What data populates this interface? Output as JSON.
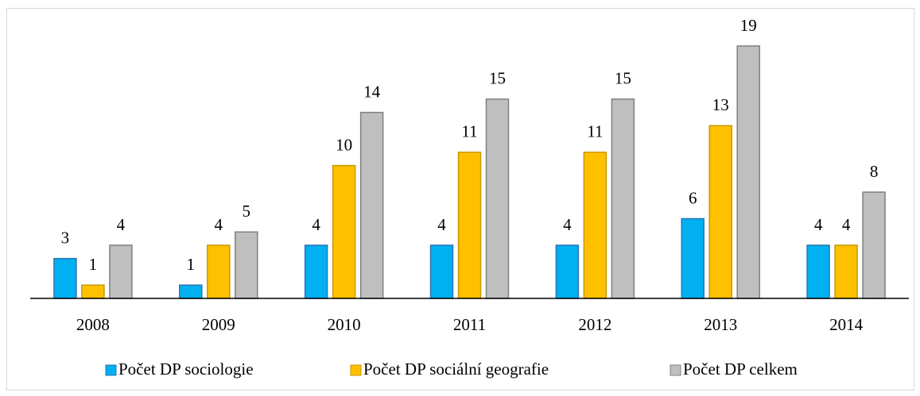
{
  "chart_data": {
    "type": "bar",
    "categories": [
      "2008",
      "2009",
      "2010",
      "2011",
      "2012",
      "2013",
      "2014"
    ],
    "series": [
      {
        "name": "Počet DP sociologie",
        "color": "#00b0f0",
        "values": [
          3,
          1,
          4,
          4,
          4,
          6,
          4
        ]
      },
      {
        "name": "Počet DP sociální geografie",
        "color": "#ffc000",
        "values": [
          1,
          4,
          10,
          11,
          11,
          13,
          4
        ]
      },
      {
        "name": "Počet DP celkem",
        "color": "#bfbfbf",
        "values": [
          4,
          5,
          14,
          15,
          15,
          19,
          8
        ]
      }
    ],
    "ylim": [
      0,
      20
    ],
    "legend": "bottom"
  }
}
